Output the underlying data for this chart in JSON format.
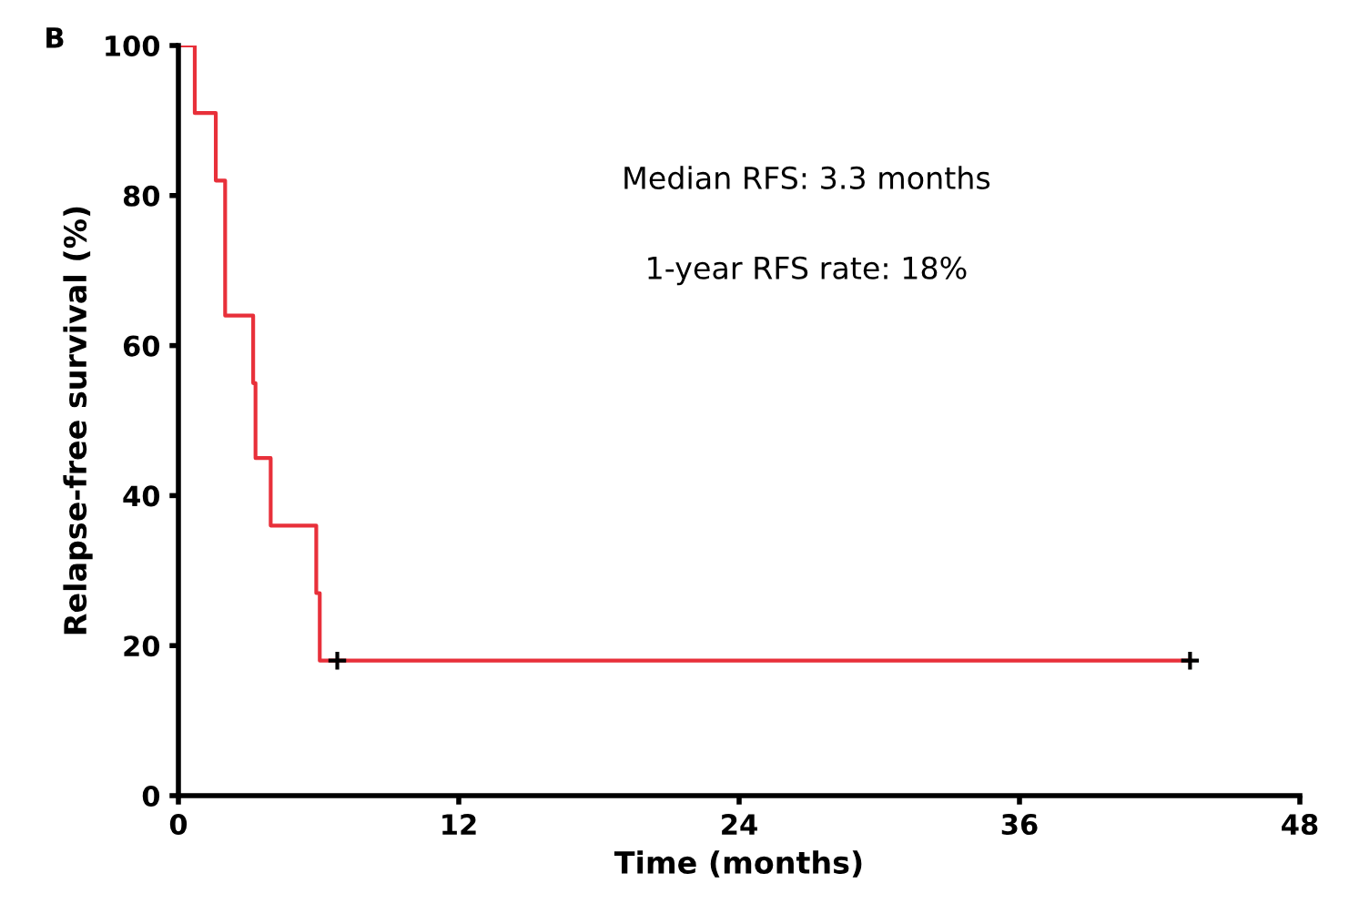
{
  "chart_data": {
    "type": "step",
    "xlabel": "Time (months)",
    "ylabel": "Relapse-free survival (%)",
    "annotations": [
      "B",
      "Median RFS: 3.3 months",
      "1-year RFS rate: 18%"
    ],
    "series": [
      {
        "color": "#e8303a",
        "x": [
          0,
          0.7,
          1.6,
          2.0,
          3.2,
          3.3,
          3.95,
          5.9,
          6.05,
          43.3
        ],
        "values": [
          100,
          91,
          82,
          64,
          55,
          45,
          36,
          27,
          18,
          18
        ]
      },
      {
        "type": "scatter",
        "color": "#000000",
        "marker": "cross",
        "x": [
          6.8,
          43.3
        ],
        "values": [
          18,
          18
        ]
      }
    ],
    "xlim": [
      0,
      48
    ],
    "ylim": [
      0,
      100
    ],
    "xticks": [
      0,
      12,
      24,
      36,
      48
    ],
    "yticks": [
      0,
      20,
      40,
      60,
      80,
      100
    ],
    "grid": false,
    "legend": false
  }
}
